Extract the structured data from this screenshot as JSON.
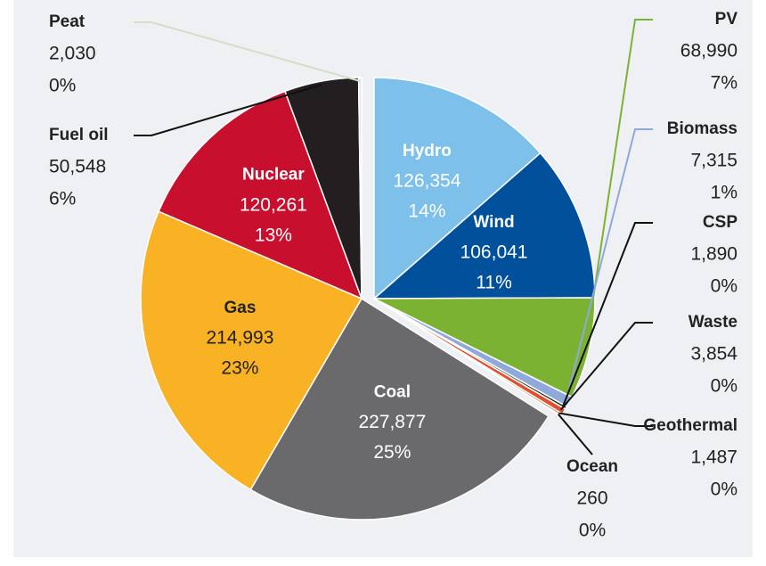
{
  "chart_data": {
    "type": "pie",
    "categories": [
      "Hydro",
      "Wind",
      "PV",
      "Biomass",
      "CSP",
      "Waste",
      "Geothermal",
      "Ocean",
      "Coal",
      "Gas",
      "Nuclear",
      "Fuel oil",
      "Peat"
    ],
    "values": [
      126354,
      106041,
      68990,
      7315,
      1890,
      3854,
      1487,
      260,
      227877,
      214993,
      120261,
      50548,
      2030
    ],
    "value_labels": [
      "126,354",
      "106,041",
      "68,990",
      "7,315",
      "1,890",
      "3,854",
      "1,487",
      "260",
      "227,877",
      "214,993",
      "120,261",
      "50,548",
      "2,030"
    ],
    "percents": [
      14,
      11,
      7,
      1,
      0,
      0,
      0,
      0,
      25,
      23,
      13,
      6,
      0
    ],
    "percent_labels": [
      "14%",
      "11%",
      "7%",
      "1%",
      "0%",
      "0%",
      "0%",
      "0%",
      "25%",
      "23%",
      "13%",
      "6%",
      "0%"
    ],
    "colors": [
      "#7dc1ea",
      "#00509b",
      "#7bb232",
      "#8ea9da",
      "#222222",
      "#e0502e",
      "#c08050",
      "#5f9fc0",
      "#6a6a6d",
      "#f8b223",
      "#c8102e",
      "#231f20",
      "#e6e6e6"
    ]
  }
}
